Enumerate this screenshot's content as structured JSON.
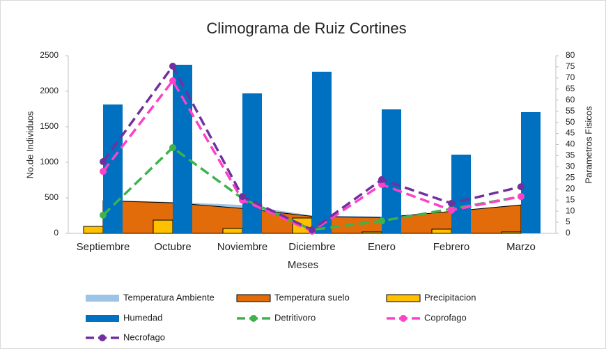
{
  "chart_data": {
    "type": "combo",
    "title": "Climograma de Ruiz Cortines",
    "x_label": "Meses",
    "y_label": "No.de Individuos",
    "y2_label": "Parametros Fisicos",
    "categories": [
      "Septiembre",
      "Octubre",
      "Noviembre",
      "Diciembre",
      "Enero",
      "Febrero",
      "Marzo"
    ],
    "ylim": [
      0,
      2500
    ],
    "yticks": [
      0,
      500,
      1000,
      1500,
      2000,
      2500
    ],
    "y2lim": [
      0,
      80
    ],
    "y2ticks": [
      0,
      5,
      10,
      15,
      20,
      25,
      30,
      35,
      40,
      45,
      50,
      55,
      60,
      65,
      70,
      75,
      80
    ],
    "series": [
      {
        "name": "Temperatura Ambiente",
        "type": "area",
        "color": "#9dc3e6",
        "values": [
          470,
          440,
          400,
          250,
          240,
          300,
          400
        ]
      },
      {
        "name": "Temperatura suelo",
        "type": "area",
        "color": "#e26b0a",
        "values": [
          460,
          430,
          350,
          240,
          220,
          310,
          400
        ]
      },
      {
        "name": "Precipitacion",
        "type": "bar",
        "color": "#ffc000",
        "values": [
          98,
          186,
          69,
          216,
          20,
          59,
          20
        ]
      },
      {
        "name": "Humedad",
        "type": "bar",
        "color": "#0070c0",
        "values": [
          1814,
          2373,
          1970,
          2275,
          1745,
          1108,
          1706
        ]
      },
      {
        "name": "Detritivoro",
        "type": "line",
        "axis": "y2",
        "color": "#3cb44b",
        "values": [
          8.2,
          38.6,
          15.7,
          1.6,
          5.6,
          11,
          16.6
        ]
      },
      {
        "name": "Coprofago",
        "type": "line",
        "axis": "y2",
        "color": "#ff40c8",
        "values": [
          27.9,
          68.7,
          15,
          1,
          22,
          10.4,
          16.6
        ]
      },
      {
        "name": "Necrofago",
        "type": "line",
        "axis": "y2",
        "color": "#7030a0",
        "values": [
          32.3,
          75.3,
          16.6,
          1.6,
          24.2,
          13.5,
          21
        ]
      }
    ]
  }
}
